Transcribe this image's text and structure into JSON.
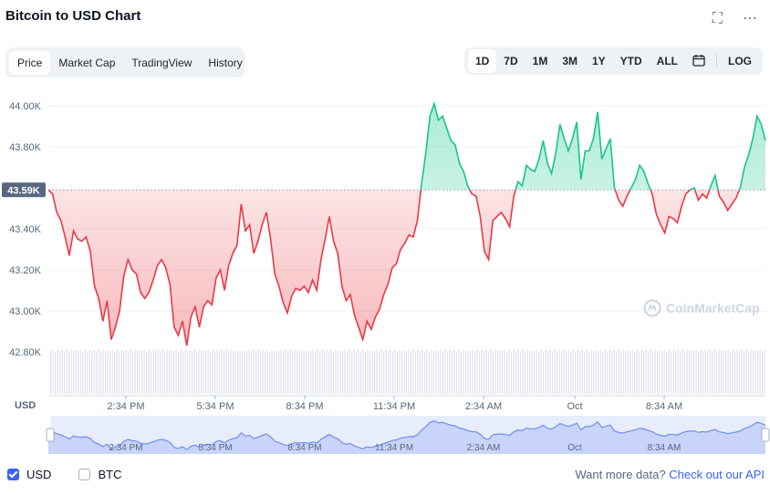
{
  "header": {
    "title": "Bitcoin to USD Chart"
  },
  "icons": {
    "fullscreen": "fullscreen-icon",
    "more": "more-icon",
    "calendar": "calendar-icon",
    "watermark": "coinmarketcap-logo"
  },
  "tabs": [
    {
      "label": "Price",
      "active": true
    },
    {
      "label": "Market Cap",
      "active": false
    },
    {
      "label": "TradingView",
      "active": false
    },
    {
      "label": "History",
      "active": false
    }
  ],
  "ranges": [
    {
      "label": "1D",
      "active": true
    },
    {
      "label": "7D",
      "active": false
    },
    {
      "label": "1M",
      "active": false
    },
    {
      "label": "3M",
      "active": false
    },
    {
      "label": "1Y",
      "active": false
    },
    {
      "label": "YTD",
      "active": false
    },
    {
      "label": "ALL",
      "active": false
    }
  ],
  "log_label": "LOG",
  "watermark": "CoinMarketCap",
  "currency_label": "USD",
  "colors": {
    "up": "#16c784",
    "down": "#ea3943",
    "accent": "#3861fb",
    "navigator_line": "#6f8ef0"
  },
  "chart_data": {
    "type": "line",
    "title": "Bitcoin to USD Chart",
    "ylabel": "USD",
    "y_ticks": [
      "44.00K",
      "43.80K",
      "43.40K",
      "43.20K",
      "43.00K",
      "42.80K"
    ],
    "ylim": [
      42800,
      44000
    ],
    "reference_value": 43590,
    "reference_label": "43.59K",
    "x_ticks": [
      "2:34 PM",
      "5:34 PM",
      "8:34 PM",
      "11:34 PM",
      "2:34 AM",
      "Oct",
      "8:34 AM"
    ],
    "series": [
      {
        "values": [
          43590,
          43570,
          43480,
          43440,
          43360,
          43270,
          43390,
          43350,
          43340,
          43360,
          43290,
          43120,
          43060,
          42950,
          43050,
          42860,
          42920,
          43000,
          43170,
          43250,
          43200,
          43180,
          43090,
          43060,
          43090,
          43150,
          43220,
          43250,
          43210,
          43130,
          42920,
          42880,
          42950,
          42830,
          42970,
          43020,
          42920,
          43020,
          43050,
          43030,
          43160,
          43200,
          43100,
          43220,
          43280,
          43320,
          43520,
          43390,
          43420,
          43280,
          43340,
          43420,
          43480,
          43350,
          43180,
          43120,
          43040,
          42990,
          43070,
          43110,
          43100,
          43120,
          43090,
          43150,
          43100,
          43250,
          43350,
          43460,
          43340,
          43280,
          43120,
          43050,
          43080,
          42980,
          42920,
          42860,
          42950,
          42910,
          42970,
          43010,
          43080,
          43130,
          43210,
          43230,
          43300,
          43330,
          43370,
          43360,
          43440,
          43620,
          43770,
          43950,
          44010,
          43930,
          43950,
          43890,
          43830,
          43810,
          43720,
          43680,
          43610,
          43570,
          43560,
          43460,
          43290,
          43250,
          43440,
          43460,
          43480,
          43450,
          43410,
          43560,
          43630,
          43610,
          43710,
          43690,
          43680,
          43740,
          43830,
          43720,
          43670,
          43770,
          43910,
          43840,
          43780,
          43840,
          43920,
          43640,
          43780,
          43780,
          43840,
          43970,
          43740,
          43790,
          43840,
          43600,
          43540,
          43510,
          43560,
          43600,
          43640,
          43710,
          43680,
          43620,
          43570,
          43470,
          43420,
          43380,
          43460,
          43450,
          43430,
          43510,
          43570,
          43590,
          43600,
          43540,
          43570,
          43550,
          43610,
          43660,
          43560,
          43530,
          43490,
          43520,
          43550,
          43600,
          43700,
          43760,
          43840,
          43950,
          43910,
          43830
        ]
      }
    ],
    "grid": true
  }
}
